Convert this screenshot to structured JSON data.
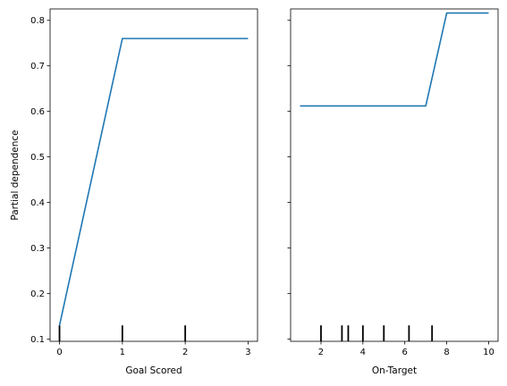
{
  "chart_data": [
    {
      "type": "line",
      "xlabel": "Goal Scored",
      "ylabel": "Partial dependence",
      "xlim": [
        -0.15,
        3.15
      ],
      "ylim": [
        0.095,
        0.825
      ],
      "xticks": [
        0,
        1,
        2,
        3
      ],
      "yticks": [
        0.1,
        0.2,
        0.3,
        0.4,
        0.5,
        0.6,
        0.7,
        0.8
      ],
      "series": [
        {
          "x": [
            0,
            1,
            2,
            3
          ],
          "y": [
            0.13,
            0.76,
            0.76,
            0.76
          ],
          "color": "#1f77b4"
        }
      ],
      "deciles": [
        0,
        1,
        2
      ],
      "grid": false
    },
    {
      "type": "line",
      "xlabel": "On-Target",
      "ylabel": "",
      "xlim": [
        0.55,
        10.45
      ],
      "ylim": [
        0.095,
        0.825
      ],
      "xticks": [
        2,
        4,
        6,
        8,
        10
      ],
      "yticks": [
        0.1,
        0.2,
        0.3,
        0.4,
        0.5,
        0.6,
        0.7,
        0.8
      ],
      "series": [
        {
          "x": [
            1,
            2,
            3,
            4,
            5,
            6,
            7,
            8,
            9,
            10
          ],
          "y": [
            0.612,
            0.612,
            0.612,
            0.612,
            0.612,
            0.612,
            0.612,
            0.816,
            0.816,
            0.816
          ],
          "color": "#1f77b4"
        }
      ],
      "deciles": [
        2,
        3,
        3.3,
        4,
        5,
        6.2,
        7.3
      ],
      "grid": false,
      "shared_y": true
    }
  ]
}
